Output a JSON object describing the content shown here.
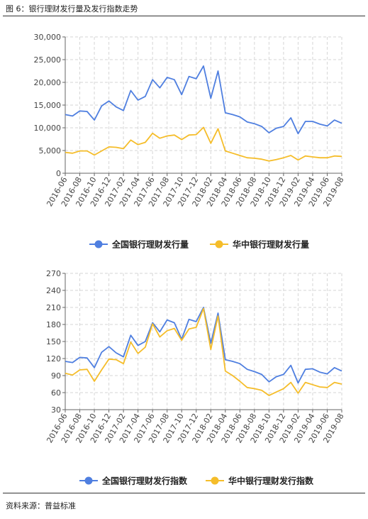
{
  "figure": {
    "title": "图 6：银行理财发行量及发行指数走势",
    "source": "资料来源：普益标准"
  },
  "colors": {
    "blue": "#4f7fe0",
    "yellow": "#f5bd2a",
    "grid": "#d6d6d6",
    "axis": "#666666"
  },
  "chart_data": [
    {
      "type": "line",
      "title": "",
      "categories": [
        "2016-06",
        "2016-07",
        "2016-08",
        "2016-09",
        "2016-10",
        "2016-11",
        "2016-12",
        "2017-01",
        "2017-02",
        "2017-03",
        "2017-04",
        "2017-05",
        "2017-06",
        "2017-07",
        "2017-08",
        "2017-09",
        "2017-10",
        "2017-11",
        "2017-12",
        "2018-01",
        "2018-02",
        "2018-03",
        "2018-04",
        "2018-05",
        "2018-06",
        "2018-07",
        "2018-08",
        "2018-09",
        "2018-10",
        "2018-11",
        "2018-12",
        "2019-01",
        "2019-02",
        "2019-03",
        "2019-04",
        "2019-05",
        "2019-06",
        "2019-07",
        "2019-08"
      ],
      "x_tick_labels": [
        "2016-06",
        "2016-08",
        "2016-10",
        "2016-12",
        "2017-02",
        "2017-04",
        "2017-06",
        "2017-08",
        "2017-10",
        "2017-12",
        "2018-02",
        "2018-04",
        "2018-06",
        "2018-08",
        "2018-10",
        "2018-12",
        "2019-02",
        "2019-04",
        "2019-06",
        "2019-08"
      ],
      "y_tick_labels": [
        "0",
        "5,000",
        "10,000",
        "15,000",
        "20,000",
        "25,000",
        "30,000"
      ],
      "ylim": [
        0,
        30000
      ],
      "yticks": [
        0,
        5000,
        10000,
        15000,
        20000,
        25000,
        30000
      ],
      "grid": true,
      "legend_position": "bottom",
      "series": [
        {
          "name": "全国银行理财发行量",
          "color": "#4f7fe0",
          "values": [
            12900,
            12600,
            13700,
            13600,
            11700,
            14800,
            15900,
            14600,
            13800,
            18200,
            16100,
            16900,
            20600,
            18800,
            21100,
            20600,
            17300,
            21300,
            20800,
            23600,
            16500,
            22500,
            13300,
            12900,
            12400,
            11300,
            10900,
            10300,
            8900,
            9900,
            10300,
            12200,
            8700,
            11400,
            11400,
            10800,
            10400,
            11700,
            11000
          ]
        },
        {
          "name": "华中银行理财发行量",
          "color": "#f5bd2a",
          "values": [
            4600,
            4400,
            4900,
            4900,
            4000,
            4900,
            5800,
            5700,
            5400,
            7300,
            6300,
            6800,
            8800,
            7700,
            8200,
            8400,
            7400,
            8400,
            8500,
            10100,
            6600,
            9800,
            4900,
            4400,
            3900,
            3400,
            3300,
            3100,
            2700,
            3000,
            3400,
            3900,
            2900,
            3800,
            3600,
            3400,
            3400,
            3800,
            3700
          ]
        }
      ]
    },
    {
      "type": "line",
      "title": "",
      "categories": [
        "2016-06",
        "2016-07",
        "2016-08",
        "2016-09",
        "2016-10",
        "2016-11",
        "2016-12",
        "2017-01",
        "2017-02",
        "2017-03",
        "2017-04",
        "2017-05",
        "2017-06",
        "2017-07",
        "2017-08",
        "2017-09",
        "2017-10",
        "2017-11",
        "2017-12",
        "2018-01",
        "2018-02",
        "2018-03",
        "2018-04",
        "2018-05",
        "2018-06",
        "2018-07",
        "2018-08",
        "2018-09",
        "2018-10",
        "2018-11",
        "2018-12",
        "2019-01",
        "2019-02",
        "2019-03",
        "2019-04",
        "2019-05",
        "2019-06",
        "2019-07",
        "2019-08"
      ],
      "x_tick_labels": [
        "2016-06",
        "2016-08",
        "2016-10",
        "2016-12",
        "2017-02",
        "2017-04",
        "2017-06",
        "2017-08",
        "2017-10",
        "2017-12",
        "2018-02",
        "2018-04",
        "2018-06",
        "2018-08",
        "2018-10",
        "2018-12",
        "2019-02",
        "2019-04",
        "2019-06",
        "2019-08"
      ],
      "y_tick_labels": [
        "30",
        "60",
        "90",
        "120",
        "150",
        "180",
        "210",
        "240",
        "270"
      ],
      "ylim": [
        30,
        270
      ],
      "yticks": [
        30,
        60,
        90,
        120,
        150,
        180,
        210,
        240,
        270
      ],
      "grid": true,
      "legend_position": "bottom",
      "series": [
        {
          "name": "全国银行理财发行指数",
          "color": "#4f7fe0",
          "values": [
            115,
            113,
            122,
            121,
            104,
            131,
            141,
            130,
            123,
            161,
            143,
            150,
            183,
            167,
            188,
            183,
            154,
            189,
            185,
            210,
            147,
            200,
            118,
            115,
            111,
            101,
            97,
            92,
            79,
            88,
            92,
            108,
            77,
            101,
            102,
            96,
            93,
            104,
            98
          ]
        },
        {
          "name": "华中银行理财发行指数",
          "color": "#f5bd2a",
          "values": [
            94,
            91,
            100,
            101,
            80,
            100,
            119,
            118,
            111,
            149,
            129,
            140,
            181,
            158,
            169,
            173,
            152,
            172,
            175,
            208,
            136,
            195,
            98,
            90,
            80,
            69,
            67,
            64,
            55,
            61,
            67,
            78,
            59,
            78,
            74,
            70,
            69,
            78,
            75
          ]
        }
      ]
    }
  ]
}
